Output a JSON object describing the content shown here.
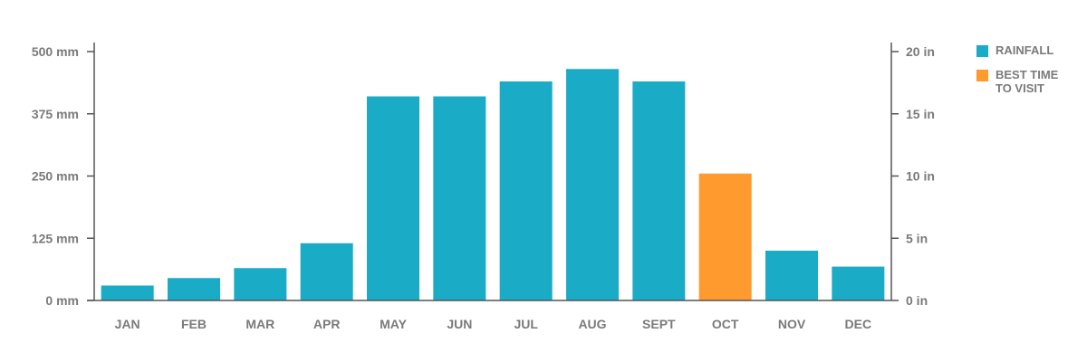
{
  "chart_data": {
    "type": "bar",
    "categories": [
      "JAN",
      "FEB",
      "MAR",
      "APR",
      "MAY",
      "JUN",
      "JUL",
      "AUG",
      "SEPT",
      "OCT",
      "NOV",
      "DEC"
    ],
    "series": [
      {
        "name": "RAINFALL",
        "values": [
          30,
          45,
          65,
          115,
          410,
          410,
          440,
          465,
          440,
          255,
          100,
          68
        ]
      }
    ],
    "highlight": {
      "category": "OCT",
      "label": "BEST TIME TO VISIT",
      "color": "#ff9a2e"
    },
    "bar_color": "#1aabc6",
    "ylim": [
      0,
      500
    ],
    "y_ticks": [
      0,
      125,
      250,
      375,
      500
    ],
    "y_tick_labels": [
      "0 mm",
      "125 mm",
      "250 mm",
      "375 mm",
      "500 mm"
    ],
    "y2_ticks": [
      0,
      5,
      10,
      15,
      20
    ],
    "y2_tick_labels": [
      "0 in",
      "5 in",
      "10 in",
      "15 in",
      "20 in"
    ],
    "y2lim": [
      0,
      20
    ],
    "title": "",
    "xlabel": "",
    "ylabel": "",
    "grid": false,
    "legend": "right"
  },
  "legend": {
    "items": [
      {
        "label": "RAINFALL",
        "color": "#1aabc6"
      },
      {
        "label": "BEST TIME TO VISIT",
        "color": "#ff9a2e"
      }
    ]
  }
}
